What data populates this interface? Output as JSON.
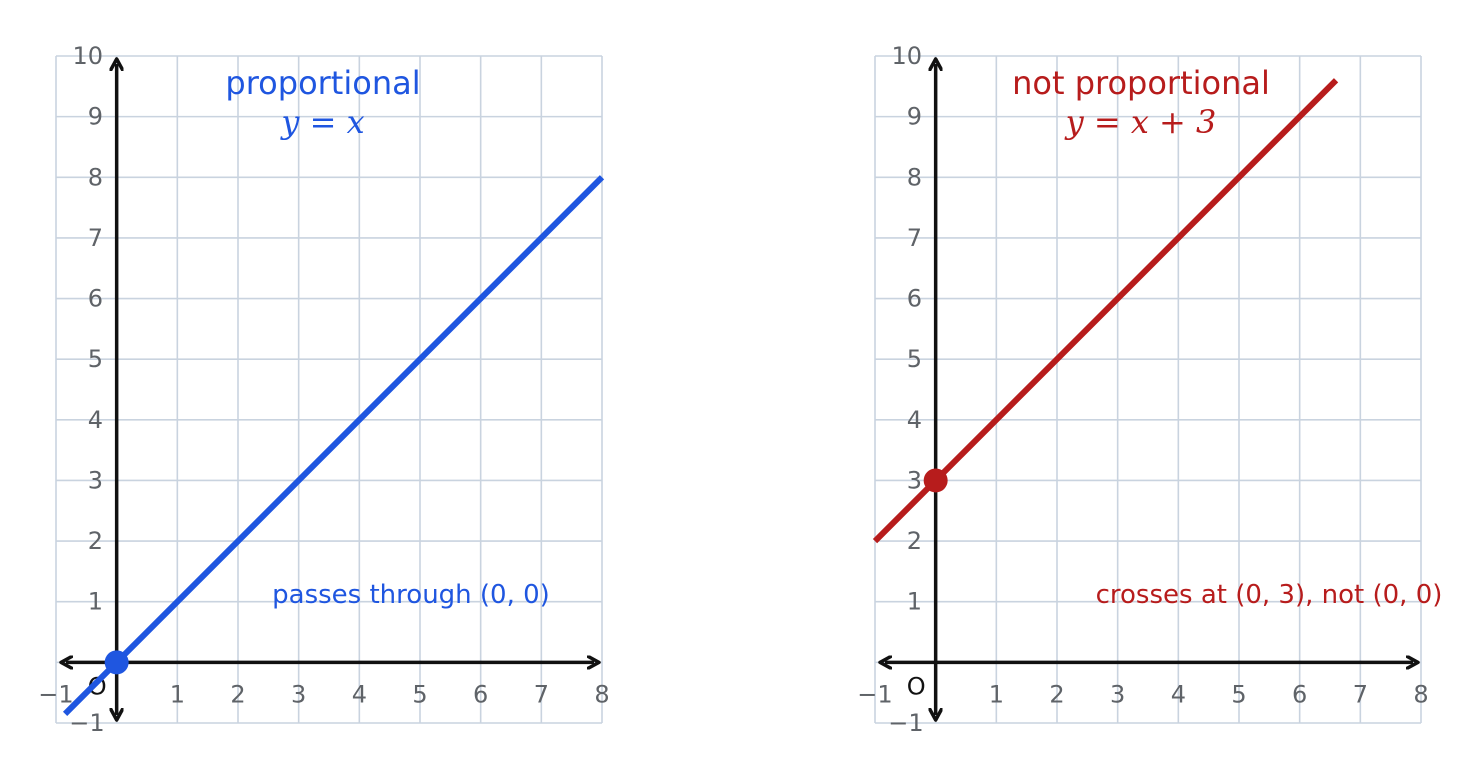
{
  "chart_data": [
    {
      "type": "line",
      "title": "proportional",
      "subtitle": "y = x",
      "color": "#1f56e0",
      "xlim": [
        -1,
        8
      ],
      "ylim": [
        -1,
        10
      ],
      "grid": true,
      "x_ticks": [
        "−1",
        "1",
        "2",
        "3",
        "4",
        "5",
        "6",
        "7",
        "8"
      ],
      "y_ticks": [
        "−1",
        "1",
        "2",
        "3",
        "4",
        "5",
        "6",
        "7",
        "8",
        "9",
        "10"
      ],
      "origin_label": "O",
      "series": [
        {
          "x": [
            -0.85,
            8
          ],
          "y": [
            -0.85,
            8
          ]
        }
      ],
      "highlight_point": {
        "x": 0,
        "y": 0
      },
      "annotation": "passes through (0, 0)"
    },
    {
      "type": "line",
      "title": "not proportional",
      "subtitle": "y = x + 3",
      "color": "#b71c1c",
      "xlim": [
        -1,
        8
      ],
      "ylim": [
        -1,
        10
      ],
      "grid": true,
      "x_ticks": [
        "−1",
        "1",
        "2",
        "3",
        "4",
        "5",
        "6",
        "7",
        "8"
      ],
      "y_ticks": [
        "−1",
        "1",
        "2",
        "3",
        "4",
        "5",
        "6",
        "7",
        "8",
        "9",
        "10"
      ],
      "origin_label": "O",
      "series": [
        {
          "x": [
            -1,
            6.6
          ],
          "y": [
            2,
            9.6
          ]
        }
      ],
      "highlight_point": {
        "x": 0,
        "y": 3
      },
      "annotation": "crosses at (0, 3), not (0, 0)"
    }
  ]
}
